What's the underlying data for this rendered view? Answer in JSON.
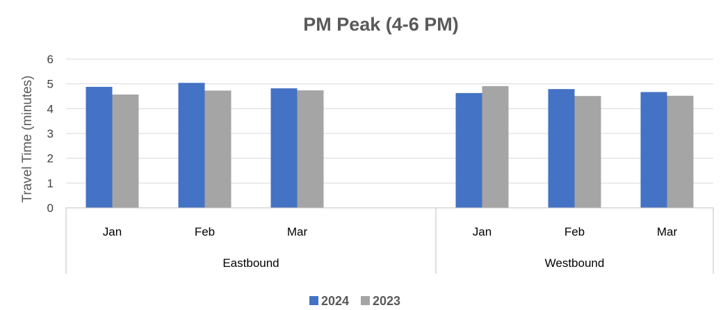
{
  "chart_data": {
    "type": "bar",
    "title": "PM Peak (4-6 PM)",
    "ylabel": "Travel Time (minutes)",
    "xlabel": "",
    "ylim": [
      0,
      6
    ],
    "yticks": [
      0,
      1,
      2,
      3,
      4,
      5,
      6
    ],
    "grid": true,
    "legend_position": "bottom",
    "groups": [
      {
        "label": "Eastbound",
        "categories": [
          "Jan",
          "Feb",
          "Mar"
        ]
      },
      {
        "label": "Westbound",
        "categories": [
          "Jan",
          "Feb",
          "Mar"
        ]
      }
    ],
    "series": [
      {
        "name": "2024",
        "color": "#4472C4",
        "values": [
          4.88,
          5.04,
          4.82,
          null,
          4.63,
          4.79,
          4.67
        ]
      },
      {
        "name": "2023",
        "color": "#A5A5A5",
        "values": [
          4.57,
          4.73,
          4.74,
          null,
          4.91,
          4.51,
          4.52
        ]
      }
    ]
  }
}
